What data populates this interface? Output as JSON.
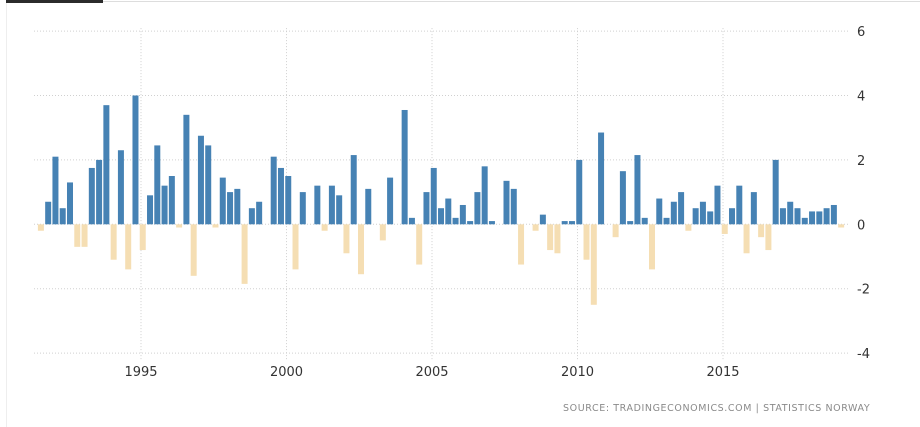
{
  "chart_data": {
    "type": "bar",
    "title": "",
    "xlabel": "",
    "ylabel": "",
    "x_start": "1991Q3",
    "frequency": "quarterly",
    "x_tick_labels": [
      "1995",
      "2000",
      "2005",
      "2010",
      "2015"
    ],
    "y_tick_labels": [
      "6",
      "4",
      "2",
      "0",
      "-2",
      "-4"
    ],
    "ylim": [
      -4,
      6
    ],
    "grid": true,
    "y_axis_side": "right",
    "colors": {
      "positive": "#4682b4",
      "negative": "#f5deb3"
    },
    "values": [
      -0.2,
      0.7,
      2.1,
      0.5,
      1.3,
      -0.7,
      -0.7,
      1.75,
      2.0,
      3.7,
      -1.1,
      2.3,
      -1.4,
      4.0,
      -0.8,
      0.9,
      2.45,
      1.2,
      1.5,
      -0.1,
      3.4,
      -1.6,
      2.75,
      2.45,
      -0.1,
      1.45,
      1.0,
      1.1,
      -1.85,
      0.5,
      0.7,
      0,
      2.1,
      1.75,
      1.5,
      -1.4,
      1.0,
      0,
      1.2,
      -0.2,
      1.2,
      0.9,
      -0.9,
      2.15,
      -1.55,
      1.1,
      0,
      -0.5,
      1.45,
      0,
      3.55,
      0.2,
      -1.25,
      1.0,
      1.75,
      0.5,
      0.8,
      0.2,
      0.6,
      0.1,
      1.0,
      1.8,
      0.1,
      0,
      1.35,
      1.1,
      -1.25,
      0,
      -0.2,
      0.3,
      -0.8,
      -0.9,
      0.1,
      0.1,
      2.0,
      -1.1,
      -2.5,
      2.85,
      0,
      -0.4,
      1.65,
      0.1,
      2.15,
      0.2,
      -1.4,
      0.8,
      0.2,
      0.7,
      1.0,
      -0.2,
      0.5,
      0.7,
      0.4,
      1.2,
      -0.3,
      0.5,
      1.2,
      -0.9,
      1.0,
      -0.4,
      -0.8,
      2.0,
      0.5,
      0.7,
      0.5,
      0.2,
      0.4,
      0.4,
      0.5,
      0.6,
      -0.1
    ]
  },
  "source": "SOURCE:  TRADINGECONOMICS.COM  |   STATISTICS  NORWAY"
}
